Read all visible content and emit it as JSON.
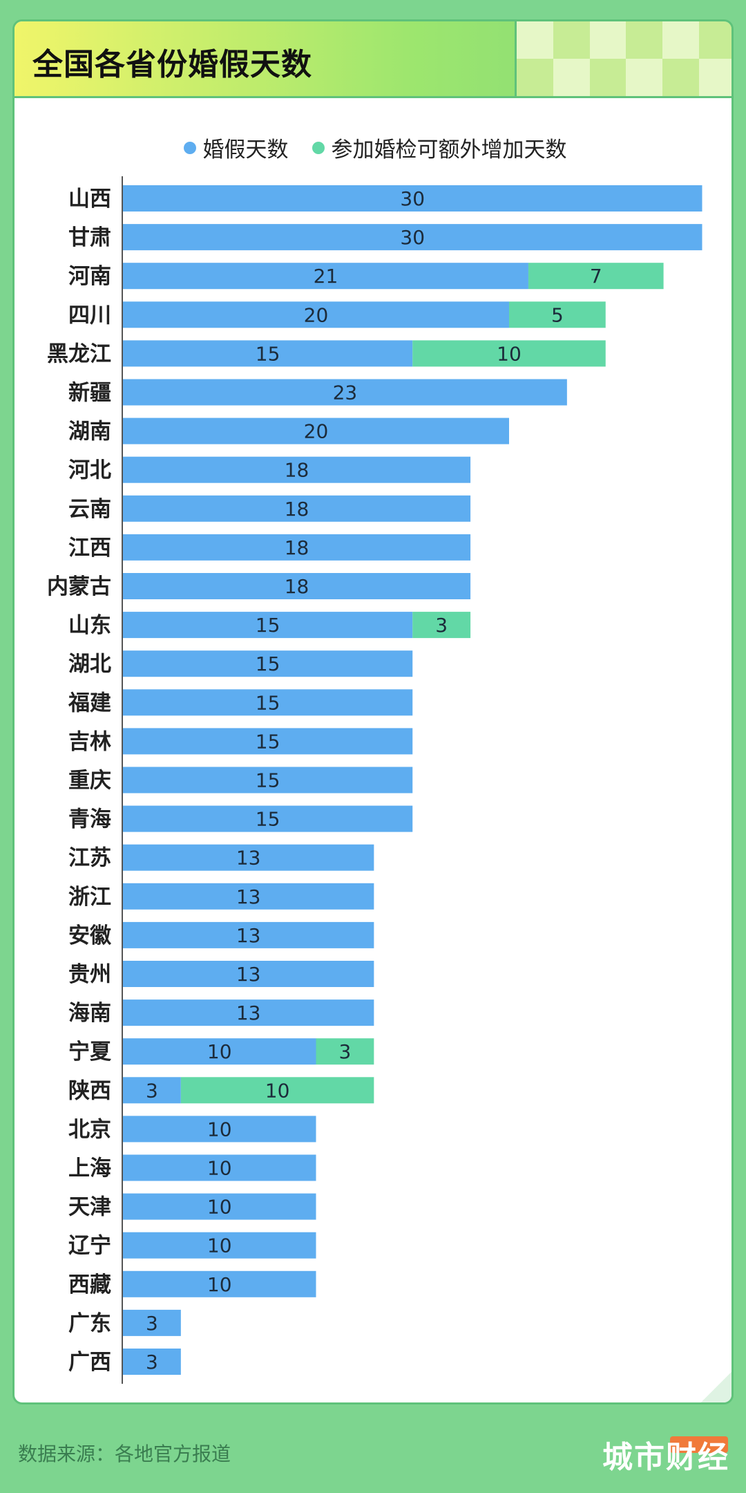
{
  "title": "全国各省份婚假天数",
  "legend": {
    "series1": "婚假天数",
    "series2": "参加婚检可额外增加天数"
  },
  "colors": {
    "series1": "#5eadf0",
    "series2": "#62d8a6",
    "background": "#7dd58f",
    "axis": "#555555"
  },
  "footer": {
    "source": "数据来源：各地官方报道",
    "logo": "城市财经"
  },
  "chart_data": {
    "type": "bar",
    "orientation": "horizontal",
    "stacked": true,
    "categories": [
      "山西",
      "甘肃",
      "河南",
      "四川",
      "黑龙江",
      "新疆",
      "湖南",
      "河北",
      "云南",
      "江西",
      "内蒙古",
      "山东",
      "湖北",
      "福建",
      "吉林",
      "重庆",
      "青海",
      "江苏",
      "浙江",
      "安徽",
      "贵州",
      "海南",
      "宁夏",
      "陕西",
      "北京",
      "上海",
      "天津",
      "辽宁",
      "西藏",
      "广东",
      "广西"
    ],
    "series": [
      {
        "name": "婚假天数",
        "values": [
          30,
          30,
          21,
          20,
          15,
          23,
          20,
          18,
          18,
          18,
          18,
          15,
          15,
          15,
          15,
          15,
          15,
          13,
          13,
          13,
          13,
          13,
          10,
          3,
          10,
          10,
          10,
          10,
          10,
          3,
          3
        ]
      },
      {
        "name": "参加婚检可额外增加天数",
        "values": [
          0,
          0,
          7,
          5,
          10,
          0,
          0,
          0,
          0,
          0,
          0,
          3,
          0,
          0,
          0,
          0,
          0,
          0,
          0,
          0,
          0,
          0,
          3,
          10,
          0,
          0,
          0,
          0,
          0,
          0,
          0
        ]
      }
    ],
    "xlim": [
      0,
      30
    ],
    "grid": false,
    "legend_position": "top"
  }
}
